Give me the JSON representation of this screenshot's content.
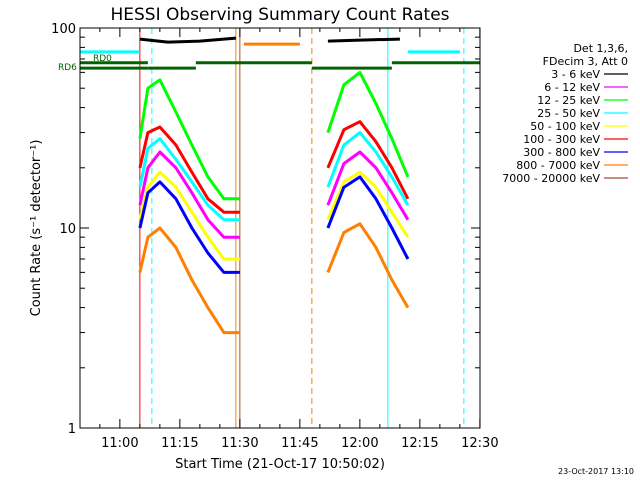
{
  "chart_data": {
    "type": "line",
    "title": "HESSI Observing Summary Count Rates",
    "xlabel": "Start Time (21-Oct-17 10:50:02)",
    "ylabel": "Count Rate (s⁻¹ detector⁻¹)",
    "x_scale": "time",
    "y_scale": "log",
    "xlim": [
      "10:50:02",
      "12:30:02"
    ],
    "ylim": [
      1,
      100
    ],
    "x_ticks": [
      "11:00",
      "11:15",
      "11:30",
      "11:45",
      "12:00",
      "12:15",
      "12:30"
    ],
    "y_ticks": [
      "1",
      "10",
      "100"
    ],
    "legend_header": [
      "Det 1,3,6,",
      "FDecim 3, Att 0"
    ],
    "legend_position": "right",
    "footer_date": "23-Oct-2017 13:10",
    "attenuator_labels": [
      "RD0",
      "RD6"
    ],
    "series": [
      {
        "name": "3 - 6 keV",
        "color": "#000000",
        "segments": [
          {
            "x": [
              "11:05",
              "11:12",
              "11:20",
              "11:29"
            ],
            "y": [
              88,
              85,
              86,
              89
            ]
          },
          {
            "x": [
              "11:52",
              "12:00",
              "12:10"
            ],
            "y": [
              86,
              87,
              88
            ]
          }
        ]
      },
      {
        "name": "6 - 12 keV",
        "color": "#ff00ff",
        "segments": [
          {
            "x": [
              "11:05",
              "11:07",
              "11:10",
              "11:14",
              "11:18",
              "11:22",
              "11:26",
              "11:30"
            ],
            "y": [
              13,
              20,
              24,
              20,
              15,
              11,
              9,
              9
            ]
          },
          {
            "x": [
              "11:52",
              "11:56",
              "12:00",
              "12:04",
              "12:08",
              "12:12"
            ],
            "y": [
              13,
              21,
              24,
              20,
              15,
              11
            ]
          }
        ]
      },
      {
        "name": "12 - 25 keV",
        "color": "#00ff00",
        "segments": [
          {
            "x": [
              "11:05",
              "11:07",
              "11:10",
              "11:14",
              "11:18",
              "11:22",
              "11:26",
              "11:30"
            ],
            "y": [
              28,
              50,
              55,
              38,
              26,
              18,
              14,
              14
            ]
          },
          {
            "x": [
              "11:52",
              "11:56",
              "12:00",
              "12:04",
              "12:08",
              "12:12"
            ],
            "y": [
              30,
              52,
              60,
              42,
              28,
              18
            ]
          }
        ]
      },
      {
        "name": "25 - 50 keV",
        "color": "#00ffff",
        "segments": [
          {
            "x": [
              "11:05",
              "11:07",
              "11:10",
              "11:14",
              "11:18",
              "11:22",
              "11:26",
              "11:30"
            ],
            "y": [
              16,
              25,
              28,
              22,
              17,
              13,
              11,
              11
            ]
          },
          {
            "x": [
              "11:52",
              "11:56",
              "12:00",
              "12:04",
              "12:08",
              "12:12"
            ],
            "y": [
              16,
              26,
              30,
              24,
              18,
              13
            ]
          }
        ]
      },
      {
        "name": "50 - 100 keV",
        "color": "#ffff00",
        "segments": [
          {
            "x": [
              "11:05",
              "11:07",
              "11:10",
              "11:14",
              "11:18",
              "11:22",
              "11:26",
              "11:30"
            ],
            "y": [
              11,
              16,
              19,
              16,
              12,
              9,
              7,
              7
            ]
          },
          {
            "x": [
              "11:52",
              "11:56",
              "12:00",
              "12:04",
              "12:08",
              "12:12"
            ],
            "y": [
              11,
              17,
              19,
              16,
              12,
              9
            ]
          }
        ]
      },
      {
        "name": "100 - 300 keV",
        "color": "#ff0000",
        "segments": [
          {
            "x": [
              "11:05",
              "11:07",
              "11:10",
              "11:14",
              "11:18",
              "11:22",
              "11:26",
              "11:30"
            ],
            "y": [
              20,
              30,
              32,
              26,
              19,
              14,
              12,
              12
            ]
          },
          {
            "x": [
              "11:52",
              "11:56",
              "12:00",
              "12:04",
              "12:08",
              "12:12"
            ],
            "y": [
              20,
              31,
              34,
              27,
              20,
              14
            ]
          }
        ]
      },
      {
        "name": "300 - 800 keV",
        "color": "#0000ff",
        "segments": [
          {
            "x": [
              "11:05",
              "11:07",
              "11:10",
              "11:14",
              "11:18",
              "11:22",
              "11:26",
              "11:30"
            ],
            "y": [
              10,
              15,
              17,
              14,
              10,
              7.5,
              6,
              6
            ]
          },
          {
            "x": [
              "11:52",
              "11:56",
              "12:00",
              "12:04",
              "12:08",
              "12:12"
            ],
            "y": [
              10,
              16,
              18,
              14,
              10,
              7
            ]
          }
        ]
      },
      {
        "name": "800 - 7000 keV",
        "color": "#ff8000",
        "segments": [
          {
            "x": [
              "11:05",
              "11:07",
              "11:10",
              "11:14",
              "11:18",
              "11:22",
              "11:26",
              "11:30"
            ],
            "y": [
              6,
              9,
              10,
              8,
              5.5,
              4,
              3,
              3
            ]
          },
          {
            "x": [
              "11:52",
              "11:56",
              "12:00",
              "12:04",
              "12:08",
              "12:12"
            ],
            "y": [
              6,
              9.5,
              10.5,
              8,
              5.5,
              4
            ]
          }
        ]
      },
      {
        "name": "7000 - 20000 keV",
        "color": "#a0522d",
        "segments": []
      }
    ],
    "horizontal_bars": [
      {
        "color": "#00ffff",
        "y": 76,
        "x": [
          "10:50:02",
          "11:05"
        ]
      },
      {
        "color": "#00ffff",
        "y": 76,
        "x": [
          "12:12",
          "12:25"
        ]
      },
      {
        "color": "#ff8000",
        "y": 83,
        "x": [
          "11:31",
          "11:45"
        ]
      },
      {
        "color": "#006400",
        "y": 67,
        "x": [
          "10:50:02",
          "11:07"
        ]
      },
      {
        "color": "#006400",
        "y": 63,
        "x": [
          "10:50:02",
          "11:07"
        ]
      },
      {
        "color": "#006400",
        "y": 63,
        "x": [
          "11:07",
          "11:19"
        ]
      },
      {
        "color": "#006400",
        "y": 67,
        "x": [
          "11:19",
          "11:48"
        ]
      },
      {
        "color": "#006400",
        "y": 63,
        "x": [
          "11:48",
          "12:08"
        ]
      },
      {
        "color": "#006400",
        "y": 67,
        "x": [
          "12:08",
          "12:30"
        ]
      }
    ],
    "vertical_lines": [
      {
        "color": "#00ffff",
        "style": "solid",
        "x": "10:50:02"
      },
      {
        "color": "#ff0000",
        "style": "solid",
        "x": "11:05"
      },
      {
        "color": "#00ffff",
        "style": "dashed",
        "x": "11:08"
      },
      {
        "color": "#ff8000",
        "style": "solid",
        "x": "11:29"
      },
      {
        "color": "#a0522d",
        "style": "solid",
        "x": "11:30"
      },
      {
        "color": "#ff8000",
        "style": "dashed",
        "x": "11:48"
      },
      {
        "color": "#00ffff",
        "style": "solid",
        "x": "12:07"
      },
      {
        "color": "#00ffff",
        "style": "dashed",
        "x": "12:26"
      }
    ]
  }
}
